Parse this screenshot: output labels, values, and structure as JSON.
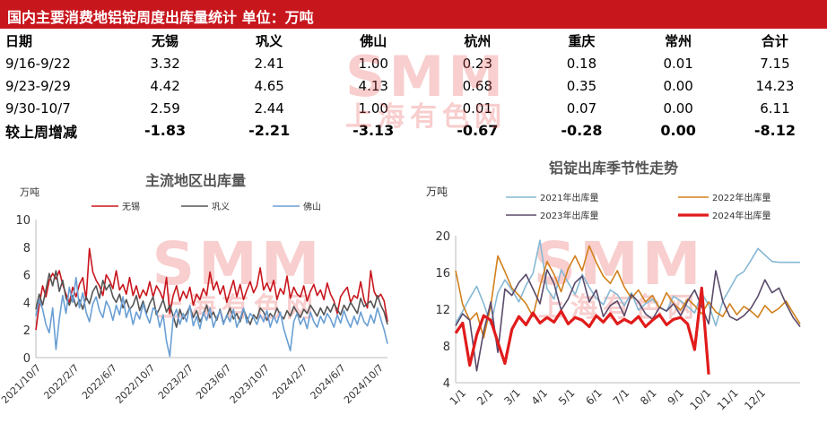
{
  "header": {
    "title": "国内主要消费地铝锭周度出库量统计 单位：万吨"
  },
  "table": {
    "columns": [
      "日期",
      "无锡",
      "巩义",
      "佛山",
      "杭州",
      "重庆",
      "常州",
      "合计"
    ],
    "rows": [
      [
        "9/16-9/22",
        "3.32",
        "2.41",
        "1.00",
        "0.23",
        "0.18",
        "0.01",
        "7.15"
      ],
      [
        "9/23-9/29",
        "4.42",
        "4.65",
        "4.13",
        "0.68",
        "0.35",
        "0.00",
        "14.23"
      ],
      [
        "9/30-10/7",
        "2.59",
        "2.44",
        "1.00",
        "0.01",
        "0.07",
        "0.00",
        "6.11"
      ]
    ],
    "total_row": [
      "较上周增减",
      "-1.83",
      "-2.21",
      "-3.13",
      "-0.67",
      "-0.28",
      "0.00",
      "-8.12"
    ],
    "colors": {
      "text": "#000000",
      "title_bg": "#c8161d"
    }
  },
  "watermark": {
    "big": "SMM",
    "small": "上海有色网"
  },
  "chart_data": [
    {
      "type": "line",
      "title": "主流地区出库量",
      "ylabel": "万吨",
      "ylim": [
        0,
        10
      ],
      "yticks": [
        0,
        2,
        4,
        6,
        8,
        10
      ],
      "xticks": [
        "2021/10/7",
        "2022/2/7",
        "2022/6/7",
        "2022/10/7",
        "2023/2/7",
        "2023/6/7",
        "2023/10/7",
        "2024/2/7",
        "2024/6/7",
        "2024/10/7"
      ],
      "legend_position": "top",
      "series": [
        {
          "name": "无锡",
          "color": "#c8161d",
          "values": [
            2,
            3.8,
            5.2,
            4.4,
            5.6,
            6.1,
            5.7,
            6.3,
            5.3,
            4.6,
            4,
            5.1,
            4.4,
            5.3,
            5.8,
            4.2,
            7.9,
            6.2,
            5.6,
            5.2,
            4.5,
            6,
            5.6,
            5,
            6.3,
            4.9,
            5.3,
            4.6,
            5.8,
            4.5,
            5.2,
            4.3,
            4.9,
            4.5,
            5.5,
            4.4,
            5.2,
            4.8,
            4.2,
            5.8,
            3.2,
            4.5,
            5.2,
            4.1,
            4.8,
            4.3,
            5.1,
            3.8,
            4.6,
            4.2,
            5,
            4.5,
            6.2,
            4.9,
            5.5,
            4.6,
            5.2,
            4,
            4.8,
            5.6,
            4.4,
            5.3,
            4.2,
            4.9,
            5.5,
            4.7,
            5.2,
            6.5,
            4.9,
            5.4,
            4.8,
            5.6,
            4.2,
            5,
            4.6,
            5.9,
            4.3,
            5.1,
            4.6,
            4.4,
            5.2,
            4.1,
            4.8,
            5.3,
            4.5,
            4.9,
            4.2,
            5.4,
            4.6,
            4.1,
            3.2,
            4.4,
            4.8,
            5.1,
            4,
            4.5,
            4.3,
            5.5,
            4.2,
            3.6,
            6.3,
            4.8,
            4.3,
            4.6,
            4.1,
            2.6
          ]
        },
        {
          "name": "巩义",
          "color": "#555555",
          "values": [
            3.5,
            4.6,
            3.8,
            4.9,
            6.1,
            5.2,
            6.3,
            4.8,
            5.6,
            4.3,
            3.8,
            4.5,
            3.7,
            4.2,
            3.5,
            4.4,
            3.9,
            4.8,
            5.2,
            4.3,
            5.6,
            4.9,
            5.3,
            4.4,
            4,
            4.6,
            3.6,
            4.2,
            3.5,
            3.8,
            4.5,
            3.4,
            4.1,
            3.2,
            3.9,
            4.4,
            3.1,
            3.6,
            4.2,
            3.3,
            3.8,
            3,
            2.2,
            3.5,
            2.8,
            3.2,
            3.7,
            2.9,
            3.4,
            2.6,
            3.1,
            3.8,
            2.9,
            3.3,
            2.7,
            3.5,
            2.5,
            3,
            3.6,
            2.8,
            3.2,
            2.6,
            3.5,
            2.9,
            2.4,
            3.1,
            2.8,
            3.6,
            3.3,
            2.7,
            3.2,
            2.9,
            3.6,
            3.1,
            2.8,
            3.4,
            3,
            3.7,
            3.3,
            2.9,
            3.5,
            3.2,
            3.8,
            3.4,
            3,
            3.6,
            3.1,
            3.7,
            3.3,
            3.9,
            3.5,
            3.1,
            3.8,
            3.4,
            4,
            3.6,
            3.2,
            4.3,
            3.7,
            3.9,
            4.1,
            3.6,
            4.5,
            3.8,
            3.3,
            2.4
          ]
        },
        {
          "name": "佛山",
          "color": "#6a9fd4",
          "values": [
            3,
            4.2,
            3.5,
            2.4,
            1.8,
            3.6,
            0.6,
            2.8,
            4.5,
            3.2,
            5.1,
            4,
            5.8,
            3.6,
            4.7,
            3.3,
            2.6,
            3.9,
            4.4,
            3.4,
            2.9,
            4.1,
            3.6,
            2.7,
            3.8,
            3.1,
            4.4,
            2.9,
            3.6,
            2.4,
            3.3,
            2.8,
            3.9,
            3.1,
            2.5,
            3.6,
            3.4,
            2.2,
            3.1,
            1.2,
            0.1,
            2.9,
            3.5,
            2.4,
            3.2,
            2.6,
            3.8,
            2.3,
            3,
            2.1,
            3.3,
            2.7,
            3.6,
            2.2,
            2.9,
            3.4,
            2.4,
            3.1,
            2.6,
            3.5,
            2.2,
            2.8,
            3.6,
            2.5,
            3.2,
            2.9,
            2.4,
            3.1,
            2.6,
            3.4,
            2.2,
            3,
            2.5,
            3.3,
            2.1,
            1.3,
            0.5,
            2.6,
            3.2,
            2.4,
            2.9,
            2.1,
            3.3,
            2.6,
            2.2,
            3,
            2.5,
            3.2,
            2.8,
            2.2,
            3.1,
            2.5,
            3.4,
            2.7,
            2.2,
            3,
            2.4,
            3.3,
            2.6,
            2.3,
            3.1,
            2.5,
            3.6,
            2.8,
            2,
            1
          ]
        }
      ]
    },
    {
      "type": "line",
      "title": "铝锭出库季节性走势",
      "ylabel": "万吨",
      "ylim": [
        4,
        20
      ],
      "yticks": [
        4,
        8,
        12,
        16,
        20
      ],
      "xticks": [
        "1/1",
        "2/1",
        "3/1",
        "4/1",
        "5/1",
        "6/1",
        "7/1",
        "8/1",
        "9/1",
        "10/1",
        "11/1",
        "12/1"
      ],
      "legend_position": "top",
      "series": [
        {
          "name": "2021年出库量",
          "color": "#86b8d4",
          "values": [
            10.5,
            11.8,
            13.2,
            14.5,
            12.6,
            10.3,
            13.8,
            15.2,
            14.1,
            12.8,
            14.6,
            15.9,
            19.5,
            14.2,
            13.1,
            16.3,
            14.9,
            13.6,
            15.8,
            14.4,
            13.2,
            12.5,
            14.1,
            13.6,
            12.4,
            13.8,
            11.9,
            12.6,
            13.1,
            12.2,
            11.8,
            13.4,
            12.9,
            12.3,
            11.6,
            13.7,
            12.5,
            10.2,
            12.9,
            14.2,
            15.6,
            16.1,
            17.3,
            18.6,
            17.9,
            17.2,
            17.1,
            17.1,
            17.1,
            17.1
          ]
        },
        {
          "name": "2022年出库量",
          "color": "#d2801c",
          "values": [
            16.2,
            12.5,
            10.8,
            11.6,
            8.9,
            12.4,
            17.8,
            16.1,
            14.3,
            13.5,
            12.6,
            11.2,
            14.5,
            17.2,
            15.8,
            13.9,
            16.4,
            17.8,
            16.2,
            18.9,
            17.1,
            15.6,
            14.8,
            16.2,
            14.4,
            13.2,
            14.1,
            12.8,
            13.5,
            12.1,
            13.8,
            12.6,
            11.9,
            13.1,
            12.4,
            11.5,
            12.8,
            11.7,
            11.2,
            12.6,
            11.4,
            12.3,
            11.8,
            11.1,
            12.4,
            11.6,
            12.1,
            12.9,
            11.6,
            10.4
          ]
        },
        {
          "name": "2023年出库量",
          "color": "#5a4a6a",
          "values": [
            10.2,
            11.5,
            10.8,
            5.3,
            9.6,
            12.8,
            7.3,
            14.2,
            13.5,
            14.9,
            15.8,
            14.2,
            12.6,
            16.3,
            14.8,
            11.9,
            13.1,
            14.9,
            15.6,
            12.8,
            14.1,
            11.2,
            12.4,
            12.9,
            11.3,
            13.6,
            12.8,
            11.5,
            10.9,
            12.2,
            11.8,
            12.6,
            11.3,
            12.9,
            14.1,
            12.3,
            10.4,
            16.2,
            12.9,
            11.2,
            10.8,
            11.3,
            12.1,
            13.4,
            15.2,
            13.8,
            14.3,
            12.6,
            11.1,
            10.1
          ]
        },
        {
          "name": "2024年出库量",
          "color": "#e11b1b",
          "values": [
            9.4,
            10.5,
            5.9,
            9.2,
            11.3,
            10.8,
            8.4,
            6.1,
            9.8,
            11.2,
            10.3,
            11.6,
            10.5,
            11.1,
            10.6,
            11.8,
            10.4,
            11.1,
            10.8,
            10.1,
            11.3,
            10.6,
            11.5,
            10.4,
            10.9,
            10.5,
            11.2,
            10.1,
            10.8,
            11.4,
            10.3,
            10.9,
            11.1,
            10.4,
            7.6,
            14.3,
            4.9
          ]
        }
      ]
    }
  ]
}
